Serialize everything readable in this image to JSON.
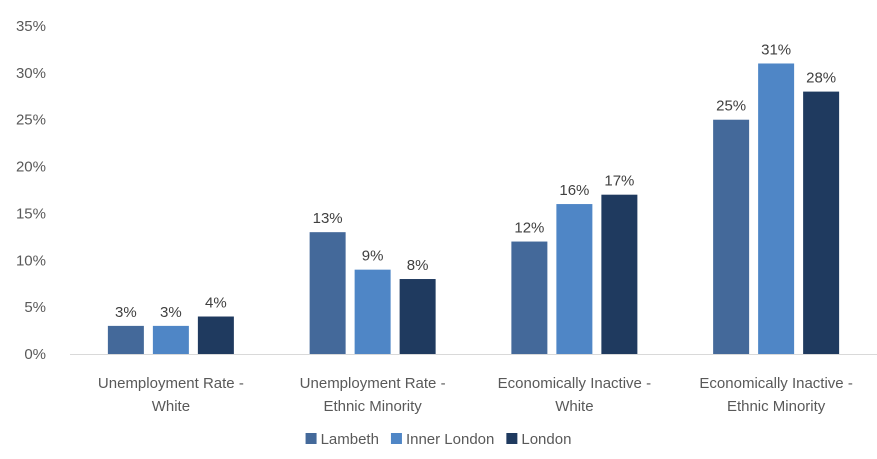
{
  "chart_data": {
    "type": "bar",
    "title": "",
    "xlabel": "",
    "ylabel": "",
    "ylim": [
      0,
      35
    ],
    "yticks": [
      {
        "value": 0,
        "label": "0%"
      },
      {
        "value": 5,
        "label": "5%"
      },
      {
        "value": 10,
        "label": "10%"
      },
      {
        "value": 15,
        "label": "15%"
      },
      {
        "value": 20,
        "label": "20%"
      },
      {
        "value": 25,
        "label": "25%"
      },
      {
        "value": 30,
        "label": "30%"
      },
      {
        "value": 35,
        "label": "35%"
      }
    ],
    "grid": false,
    "legend_position": "bottom",
    "categories": [
      [
        "Unemployment Rate -",
        "White"
      ],
      [
        "Unemployment Rate -",
        "Ethnic Minority"
      ],
      [
        "Economically Inactive -",
        "White"
      ],
      [
        "Economically Inactive -",
        "Ethnic Minority"
      ]
    ],
    "series": [
      {
        "name": "Lambeth",
        "color": "#44699a",
        "values": [
          3,
          13,
          12,
          25
        ],
        "labels": [
          "3%",
          "13%",
          "12%",
          "25%"
        ]
      },
      {
        "name": "Inner London",
        "color": "#4f86c6",
        "values": [
          3,
          9,
          16,
          31
        ],
        "labels": [
          "3%",
          "9%",
          "16%",
          "31%"
        ]
      },
      {
        "name": "London",
        "color": "#1f3a5f",
        "values": [
          4,
          8,
          17,
          28
        ],
        "labels": [
          "4%",
          "8%",
          "17%",
          "28%"
        ]
      }
    ]
  }
}
